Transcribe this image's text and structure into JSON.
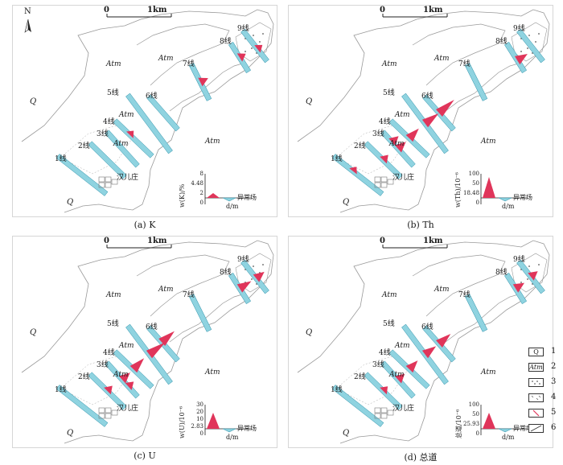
{
  "north_label": "N",
  "scale": {
    "zero": "0",
    "dist": "1km"
  },
  "place_name": "汉儿庄",
  "lines": [
    "1线",
    "2线",
    "3线",
    "4线",
    "5线",
    "6线",
    "7线",
    "8线",
    "9线"
  ],
  "units": {
    "q": "Q",
    "atm": "Atm"
  },
  "anomaly_label": "异常场",
  "axis_unit": "d/m",
  "panels": [
    {
      "caption": "(a) K",
      "ylabel": "w(K)/%",
      "ticks": [
        "8",
        "4.48",
        "2",
        "0"
      ]
    },
    {
      "caption": "(b) Th",
      "ylabel": "w(Th)/10⁻⁶",
      "ticks": [
        "100",
        "50",
        "18.48",
        "0"
      ]
    },
    {
      "caption": "(c) U",
      "ylabel": "w(U)/10⁻⁶",
      "ticks": [
        "30",
        "20",
        "10",
        "2.83",
        "0"
      ]
    },
    {
      "caption": "(d) 总道",
      "ylabel": "总道/10⁻⁶",
      "ticks": [
        "100",
        "50",
        "25.93",
        "0"
      ]
    }
  ],
  "legend": [
    {
      "num": "1",
      "sym": "Q"
    },
    {
      "num": "2",
      "sym": "Atm"
    },
    {
      "num": "3",
      "sym": ""
    },
    {
      "num": "4",
      "sym": ""
    },
    {
      "num": "5",
      "sym": ""
    },
    {
      "num": "6",
      "sym": ""
    }
  ],
  "colors": {
    "profile": "#8fd3e0",
    "anomaly": "#e0355a",
    "outline": "#999999"
  }
}
